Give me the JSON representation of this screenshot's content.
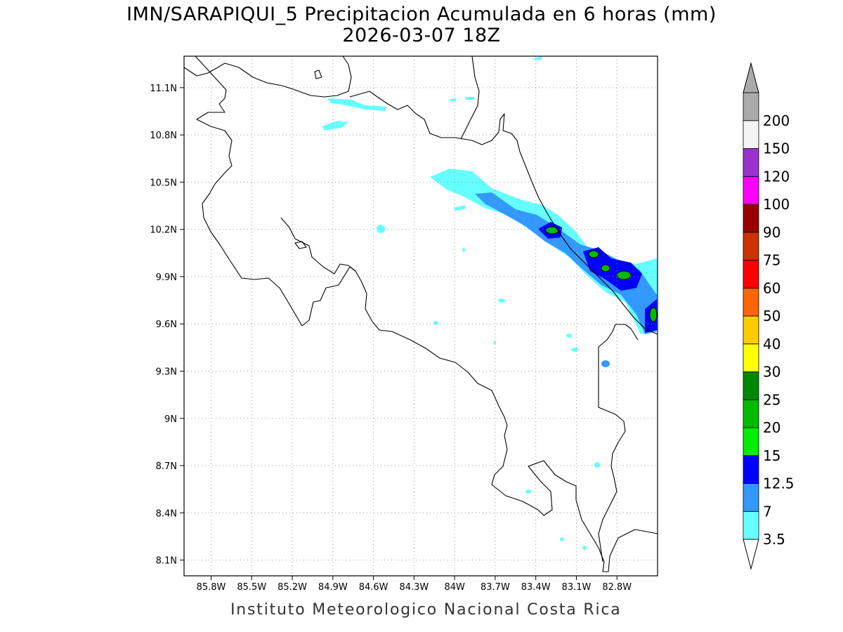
{
  "title_line1": "IMN/SARAPIQUI_5 Precipitacion Acumulada en 6 horas (mm)",
  "title_line2": "2026-03-07 18Z",
  "credit": "Instituto Meteorologico Nacional Costa Rica",
  "map": {
    "lon_labels": [
      "85.8W",
      "85.5W",
      "85.2W",
      "84.9W",
      "84.6W",
      "84.3W",
      "84W",
      "83.7W",
      "83.4W",
      "83.1W",
      "82.8W"
    ],
    "lon_values": [
      -85.8,
      -85.5,
      -85.2,
      -84.9,
      -84.6,
      -84.3,
      -84.0,
      -83.7,
      -83.4,
      -83.1,
      -82.8
    ],
    "lat_labels": [
      "11.1N",
      "10.8N",
      "10.5N",
      "10.2N",
      "9.9N",
      "9.6N",
      "9.3N",
      "9N",
      "8.7N",
      "8.4N",
      "8.1N"
    ],
    "lat_values": [
      11.1,
      10.8,
      10.5,
      10.2,
      9.9,
      9.6,
      9.3,
      9.0,
      8.7,
      8.4,
      8.1
    ],
    "lon_range": [
      -86.0,
      -82.5
    ],
    "lat_range": [
      8.0,
      11.3
    ],
    "grid": "dotted"
  },
  "colorbar": {
    "levels": [
      "3.5",
      "7",
      "12.5",
      "15",
      "20",
      "25",
      "30",
      "40",
      "50",
      "60",
      "75",
      "90",
      "100",
      "120",
      "150",
      "200"
    ],
    "colors": [
      "#66ffff",
      "#3399ff",
      "#0000ff",
      "#00ee00",
      "#00bb00",
      "#008800",
      "#ffff00",
      "#ffcc00",
      "#ff6600",
      "#ff0000",
      "#cc3300",
      "#990000",
      "#ff00ff",
      "#9933cc",
      "#f4f4f4",
      "#aaaaaa"
    ],
    "lower_arrow_color": "#ffffff",
    "upper_arrow_color": "#aaaaaa"
  }
}
